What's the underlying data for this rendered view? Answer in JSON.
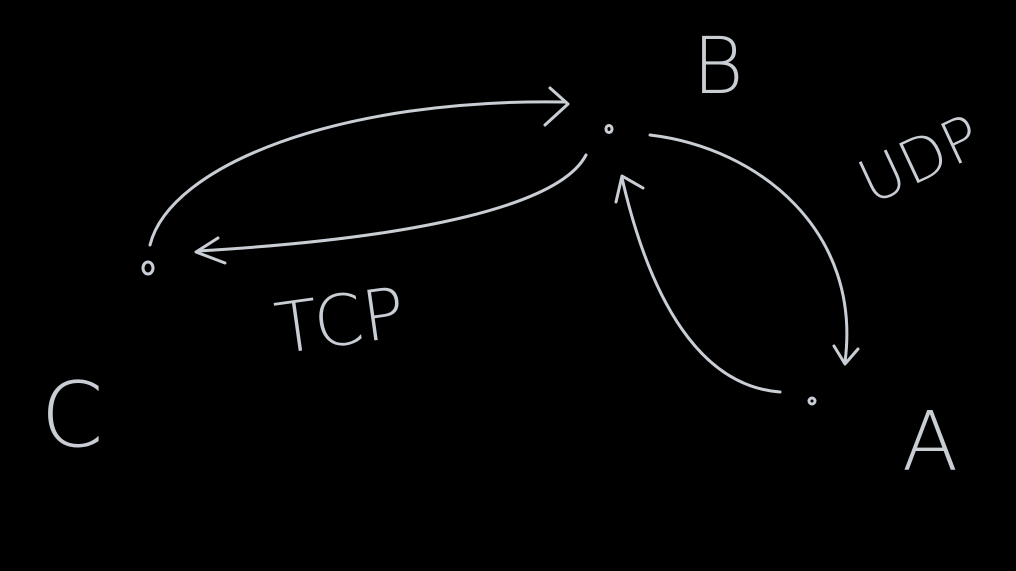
{
  "nodes": [
    {
      "label": "B"
    },
    {
      "label": "A"
    },
    {
      "label": "C"
    }
  ],
  "edges": [
    {
      "label": "TCP"
    },
    {
      "label": "UDP"
    }
  ]
}
